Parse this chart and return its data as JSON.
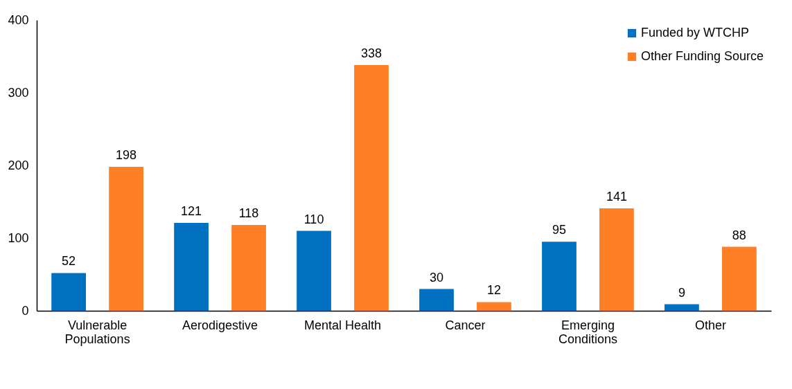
{
  "chart_data": {
    "type": "bar",
    "categories": [
      "Vulnerable Populations",
      "Aerodigestive",
      "Mental Health",
      "Cancer",
      "Emerging Conditions",
      "Other"
    ],
    "series": [
      {
        "name": "Funded by WTCHP",
        "color": "#0070c0",
        "values": [
          52,
          121,
          110,
          30,
          95,
          9
        ]
      },
      {
        "name": "Other Funding Source",
        "color": "#ff7f27",
        "values": [
          198,
          118,
          338,
          12,
          141,
          88
        ]
      }
    ],
    "ylim": [
      0,
      400
    ],
    "yticks": [
      0,
      100,
      200,
      300,
      400
    ],
    "grid": false,
    "legend": "top right",
    "data_labels": true
  }
}
